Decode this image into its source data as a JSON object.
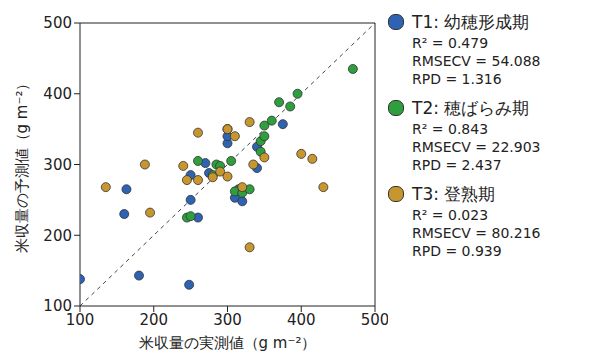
{
  "chart_data": {
    "type": "scatter",
    "xlabel": "米収量の実測値（g m⁻²）",
    "ylabel": "米収量の予測値（g m⁻²）",
    "xlim": [
      100,
      500
    ],
    "ylim": [
      100,
      500
    ],
    "xticks": [
      100,
      200,
      300,
      400,
      500
    ],
    "yticks": [
      100,
      200,
      300,
      400,
      500
    ],
    "line_style": "dashed",
    "series": [
      {
        "name": "T1: 幼穂形成期",
        "color": "#2e63b4",
        "stats": [
          {
            "label": "R² =",
            "value": 0.479
          },
          {
            "label": "RMSECV =",
            "value": 54.088
          },
          {
            "label": "RPD =",
            "value": 1.316
          }
        ],
        "x": [
          100,
          160,
          163,
          180,
          248,
          250,
          250,
          260,
          270,
          275,
          300,
          300,
          310,
          315,
          320,
          340,
          340,
          375
        ],
        "y": [
          138,
          230,
          265,
          143,
          130,
          250,
          285,
          225,
          302,
          288,
          330,
          340,
          253,
          265,
          248,
          295,
          325,
          357
        ]
      },
      {
        "name": "T2: 穂ばらみ期",
        "color": "#2e9e3e",
        "stats": [
          {
            "label": "R² =",
            "value": 0.843
          },
          {
            "label": "RMSECV =",
            "value": 22.903
          },
          {
            "label": "RPD =",
            "value": 2.437
          }
        ],
        "x": [
          245,
          250,
          260,
          280,
          285,
          290,
          300,
          305,
          310,
          320,
          330,
          345,
          345,
          350,
          350,
          360,
          370,
          385,
          395,
          470
        ],
        "y": [
          225,
          227,
          305,
          285,
          300,
          298,
          350,
          305,
          262,
          260,
          265,
          318,
          333,
          340,
          355,
          362,
          388,
          382,
          400,
          435
        ]
      },
      {
        "name": "T3: 登熟期",
        "color": "#c8962e",
        "stats": [
          {
            "label": "R² =",
            "value": 0.023
          },
          {
            "label": "RMSECV =",
            "value": 80.216
          },
          {
            "label": "RPD =",
            "value": 0.939
          }
        ],
        "x": [
          135,
          188,
          195,
          240,
          245,
          260,
          260,
          280,
          290,
          300,
          300,
          310,
          320,
          330,
          330,
          335,
          350,
          400,
          415,
          430
        ],
        "y": [
          268,
          300,
          232,
          298,
          278,
          345,
          278,
          282,
          290,
          283,
          350,
          340,
          268,
          360,
          183,
          300,
          310,
          315,
          308,
          268
        ]
      }
    ]
  }
}
